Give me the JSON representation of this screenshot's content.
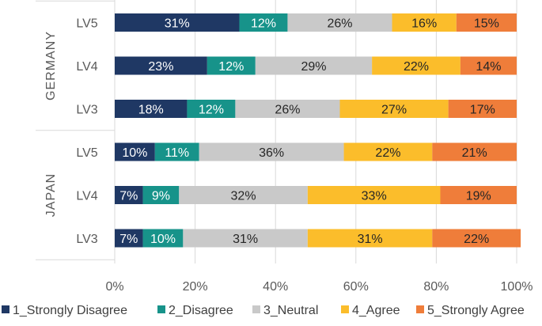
{
  "chart_data": {
    "type": "bar",
    "orientation": "horizontal",
    "stacked": "percent",
    "title": "",
    "xlabel": "",
    "ylabel": "",
    "xlim": [
      0,
      100
    ],
    "x_ticks": [
      "0%",
      "20%",
      "40%",
      "60%",
      "80%",
      "100%"
    ],
    "grid": true,
    "legend_position": "bottom",
    "groups": [
      {
        "name": "GERMANY",
        "categories": [
          "LV5",
          "LV4",
          "LV3"
        ]
      },
      {
        "name": "JAPAN",
        "categories": [
          "LV5",
          "LV4",
          "LV3"
        ]
      }
    ],
    "series": [
      {
        "name": "1_Strongly Disagree",
        "color": "#1f3864",
        "label_color": "#ffffff",
        "values": [
          31,
          23,
          18,
          10,
          7,
          7
        ]
      },
      {
        "name": "2_Disagree",
        "color": "#17938a",
        "label_color": "#ffffff",
        "values": [
          12,
          12,
          12,
          11,
          9,
          10
        ]
      },
      {
        "name": "3_Neutral",
        "color": "#c9c9c9",
        "label_color": "#262626",
        "values": [
          26,
          29,
          26,
          36,
          32,
          31
        ]
      },
      {
        "name": "4_Agree",
        "color": "#fbbd2b",
        "label_color": "#262626",
        "values": [
          16,
          22,
          27,
          22,
          33,
          31
        ]
      },
      {
        "name": "5_Strongly Agree",
        "color": "#ef7d3a",
        "label_color": "#262626",
        "values": [
          15,
          14,
          17,
          21,
          19,
          22
        ]
      }
    ]
  }
}
